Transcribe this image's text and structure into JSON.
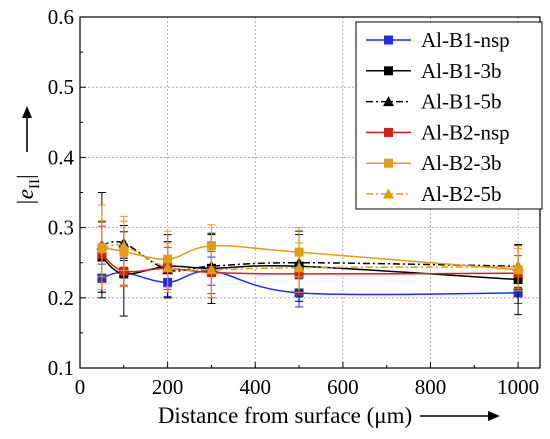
{
  "chart_data": {
    "type": "line",
    "xlabel": "Distance from surface (μm)",
    "ylabel_main": "|e",
    "ylabel_sub": "II",
    "ylabel_suffix": "|",
    "xlim": [
      0,
      1050
    ],
    "ylim": [
      0.1,
      0.6
    ],
    "xticks": [
      0,
      200,
      400,
      600,
      800,
      1000
    ],
    "yticks": [
      0.1,
      0.2,
      0.3,
      0.4,
      0.5,
      0.6
    ],
    "xtick_labels": [
      "0",
      "200",
      "400",
      "600",
      "800",
      "1000"
    ],
    "ytick_labels": [
      "0.1",
      "0.2",
      "0.3",
      "0.4",
      "0.5",
      "0.6"
    ],
    "grid": true,
    "legend_position": "top-right",
    "series": [
      {
        "name": "Al-B1-nsp",
        "color": "#1f2ee0",
        "marker": "square",
        "dash": "solid",
        "x": [
          50,
          100,
          200,
          300,
          500,
          1000
        ],
        "y": [
          0.228,
          0.236,
          0.222,
          0.238,
          0.207,
          0.207
        ],
        "err": [
          0.02,
          0.02,
          0.02,
          0.02,
          0.02,
          0.015
        ]
      },
      {
        "name": "Al-B1-3b",
        "color": "#000000",
        "marker": "square",
        "dash": "solid",
        "x": [
          50,
          100,
          200,
          300,
          500,
          1000
        ],
        "y": [
          0.258,
          0.234,
          0.245,
          0.242,
          0.245,
          0.226
        ],
        "err": [
          0.05,
          0.06,
          0.045,
          0.05,
          0.05,
          0.05
        ]
      },
      {
        "name": "Al-B1-5b",
        "color": "#000000",
        "marker": "triangle",
        "dash": "dashdot",
        "x": [
          50,
          100,
          200,
          300,
          500,
          1000
        ],
        "y": [
          0.275,
          0.278,
          0.24,
          0.245,
          0.25,
          0.245
        ],
        "err": [
          0.075,
          0.025,
          0.04,
          0.045,
          0.04,
          0.03
        ]
      },
      {
        "name": "Al-B2-nsp",
        "color": "#d0211c",
        "marker": "square",
        "dash": "solid",
        "x": [
          50,
          100,
          200,
          300,
          500,
          1000
        ],
        "y": [
          0.262,
          0.238,
          0.242,
          0.236,
          0.234,
          0.235
        ],
        "err": [
          0.04,
          0.02,
          0.03,
          0.03,
          0.03,
          0.025
        ]
      },
      {
        "name": "Al-B2-3b",
        "color": "#e39b10",
        "marker": "square",
        "dash": "solid",
        "x": [
          50,
          100,
          200,
          300,
          500,
          1000
        ],
        "y": [
          0.272,
          0.266,
          0.255,
          0.274,
          0.265,
          0.24
        ],
        "err": [
          0.06,
          0.05,
          0.04,
          0.03,
          0.035,
          0.03
        ]
      },
      {
        "name": "Al-B2-5b",
        "color": "#e39b10",
        "marker": "triangle",
        "dash": "dashdot",
        "x": [
          50,
          100,
          200,
          300,
          500,
          1000
        ],
        "y": [
          0.27,
          0.274,
          0.243,
          0.24,
          0.243,
          0.244
        ],
        "err": [
          0.04,
          0.035,
          0.035,
          0.04,
          0.035,
          0.03
        ]
      }
    ]
  }
}
